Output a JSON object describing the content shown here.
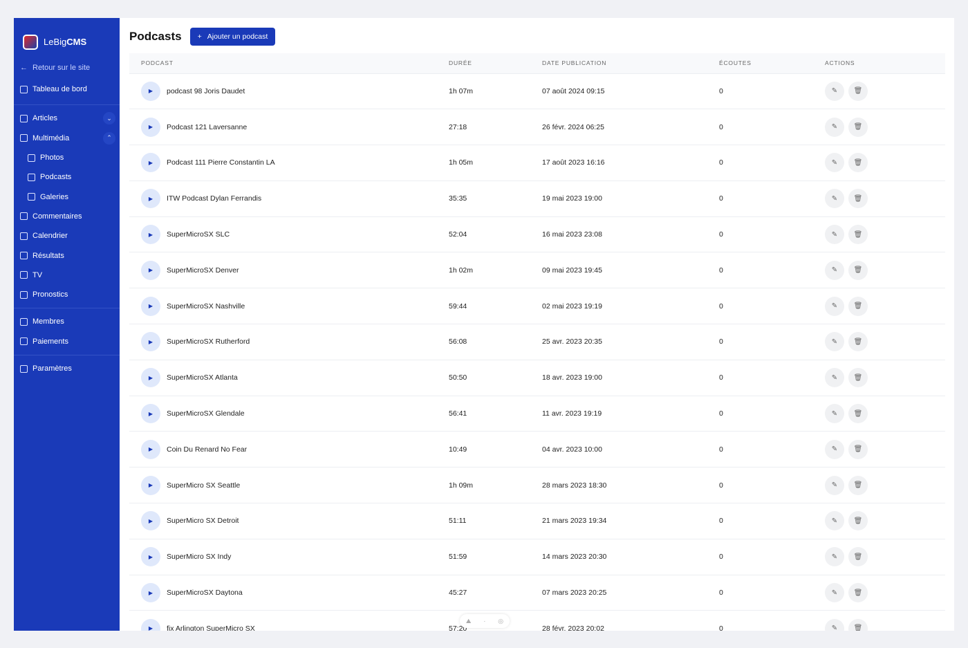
{
  "app": {
    "brand_light": "LeBig",
    "brand_bold": "CMS"
  },
  "sidebar": {
    "back": "Retour sur le site",
    "dashboard": "Tableau de bord",
    "items": [
      {
        "label": "Articles"
      },
      {
        "label": "Multimédia"
      },
      {
        "label": "Photos"
      },
      {
        "label": "Podcasts"
      },
      {
        "label": "Galeries"
      },
      {
        "label": "Commentaires"
      },
      {
        "label": "Calendrier"
      },
      {
        "label": "Résultats"
      },
      {
        "label": "TV"
      },
      {
        "label": "Pronostics"
      },
      {
        "label": "Membres"
      },
      {
        "label": "Paiements"
      },
      {
        "label": "Paramètres"
      }
    ]
  },
  "header": {
    "title": "Podcasts",
    "add_label": "Ajouter un podcast"
  },
  "table": {
    "columns": [
      "PODCAST",
      "DURÉE",
      "DATE PUBLICATION",
      "ÉCOUTES",
      "ACTIONS"
    ],
    "rows": [
      {
        "title": "podcast 98 Joris Daudet",
        "duration": "1h 07m",
        "date": "07 août 2024 09:15",
        "listens": "0"
      },
      {
        "title": "Podcast 121 Laversanne",
        "duration": "27:18",
        "date": "26 févr. 2024 06:25",
        "listens": "0"
      },
      {
        "title": "Podcast 111 Pierre Constantin LA",
        "duration": "1h 05m",
        "date": "17 août 2023 16:16",
        "listens": "0"
      },
      {
        "title": "ITW Podcast Dylan Ferrandis",
        "duration": "35:35",
        "date": "19 mai 2023 19:00",
        "listens": "0"
      },
      {
        "title": "SuperMicroSX SLC",
        "duration": "52:04",
        "date": "16 mai 2023 23:08",
        "listens": "0"
      },
      {
        "title": "SuperMicroSX Denver",
        "duration": "1h 02m",
        "date": "09 mai 2023 19:45",
        "listens": "0"
      },
      {
        "title": "SuperMicroSX Nashville",
        "duration": "59:44",
        "date": "02 mai 2023 19:19",
        "listens": "0"
      },
      {
        "title": "SuperMicroSX Rutherford",
        "duration": "56:08",
        "date": "25 avr. 2023 20:35",
        "listens": "0"
      },
      {
        "title": "SuperMicroSX Atlanta",
        "duration": "50:50",
        "date": "18 avr. 2023 19:00",
        "listens": "0"
      },
      {
        "title": "SuperMicroSX Glendale",
        "duration": "56:41",
        "date": "11 avr. 2023 19:19",
        "listens": "0"
      },
      {
        "title": "Coin Du Renard No Fear",
        "duration": "10:49",
        "date": "04 avr. 2023 10:00",
        "listens": "0"
      },
      {
        "title": "SuperMicro SX Seattle",
        "duration": "1h 09m",
        "date": "28 mars 2023 18:30",
        "listens": "0"
      },
      {
        "title": "SuperMicro SX Detroit",
        "duration": "51:11",
        "date": "21 mars 2023 19:34",
        "listens": "0"
      },
      {
        "title": "SuperMicro SX Indy",
        "duration": "51:59",
        "date": "14 mars 2023 20:30",
        "listens": "0"
      },
      {
        "title": "SuperMicroSX Daytona",
        "duration": "45:27",
        "date": "07 mars 2023 20:25",
        "listens": "0"
      },
      {
        "title": "fix Arlington SuperMicro SX",
        "duration": "57:20",
        "date": "28 févr. 2023 20:02",
        "listens": "0"
      }
    ]
  },
  "colors": {
    "primary": "#1a3ab8",
    "background": "#f0f1f5"
  }
}
